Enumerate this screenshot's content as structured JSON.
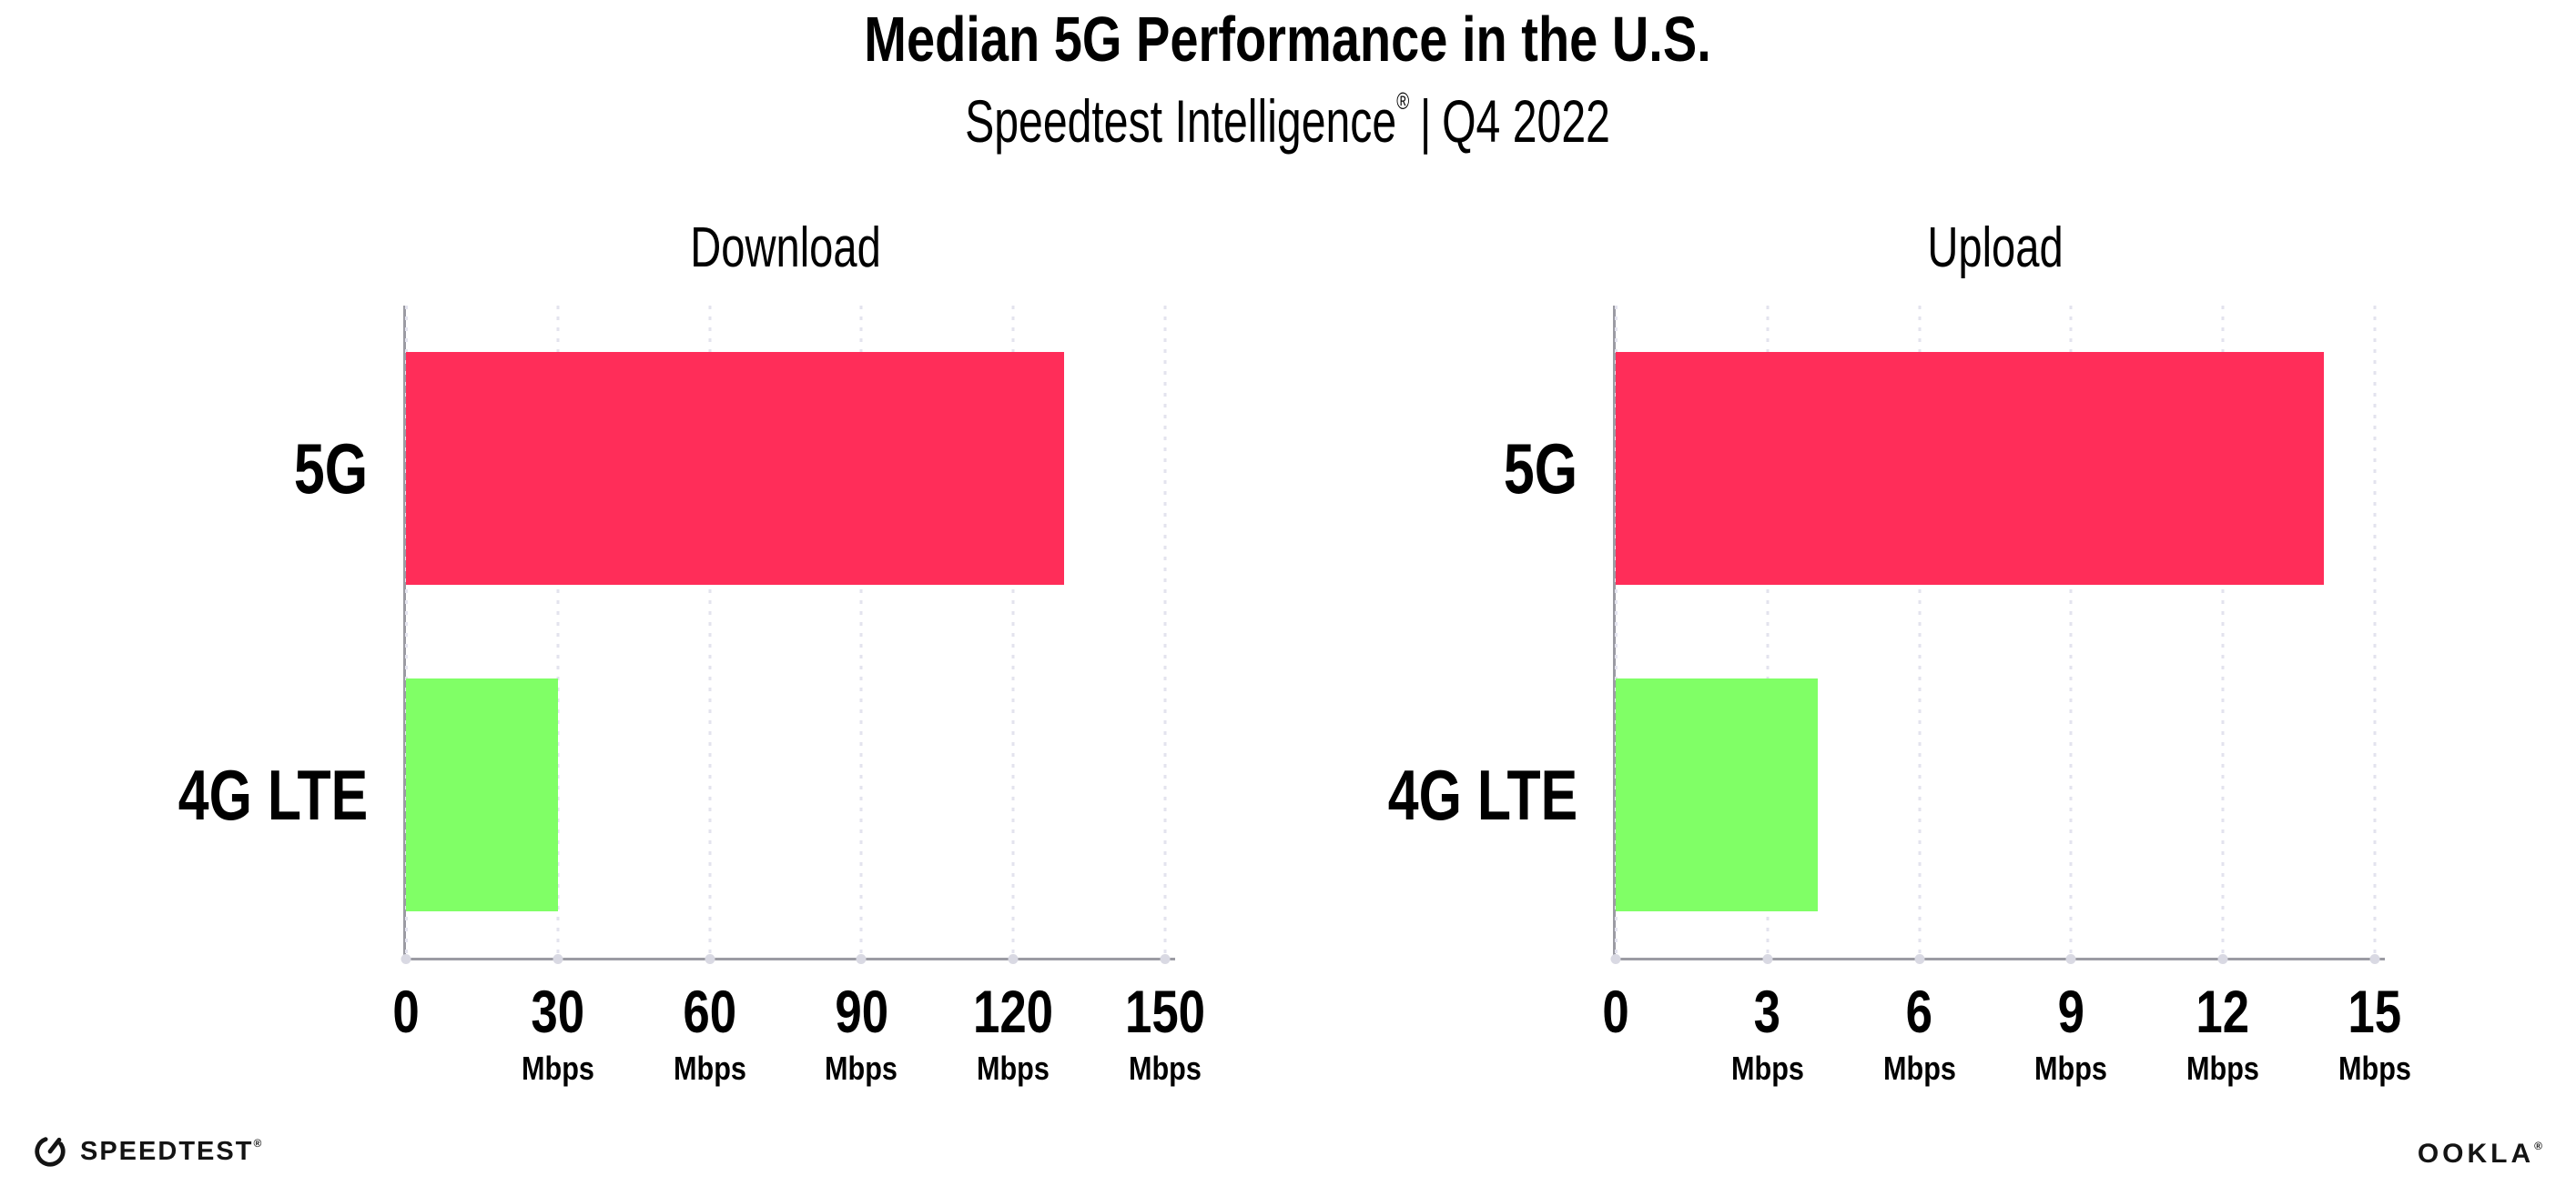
{
  "header": {
    "title": "Median 5G Performance in the U.S.",
    "subtitle_brand": "Speedtest Intelligence",
    "subtitle_reg": "®",
    "subtitle_sep": "|",
    "subtitle_period": "Q4 2022"
  },
  "chart_data": [
    {
      "type": "bar",
      "orientation": "horizontal",
      "title": "Download",
      "categories": [
        "5G",
        "4G LTE"
      ],
      "values": [
        130,
        30
      ],
      "unit": "Mbps",
      "xlabel": "",
      "ylabel": "",
      "xlim": [
        0,
        150
      ],
      "xticks": [
        0,
        30,
        60,
        90,
        120,
        150
      ],
      "bar_colors": [
        "#FF2D59",
        "#80FF66"
      ],
      "grid": "dotted vertical gridlines at each tick",
      "legend": "none"
    },
    {
      "type": "bar",
      "orientation": "horizontal",
      "title": "Upload",
      "categories": [
        "5G",
        "4G LTE"
      ],
      "values": [
        14,
        4
      ],
      "unit": "Mbps",
      "xlabel": "",
      "ylabel": "",
      "xlim": [
        0,
        15
      ],
      "xticks": [
        0,
        3,
        6,
        9,
        12,
        15
      ],
      "bar_colors": [
        "#FF2D59",
        "#80FF66"
      ],
      "grid": "dotted vertical gridlines at each tick",
      "legend": "none"
    }
  ],
  "colors": {
    "bar_5g": "#FF2D59",
    "bar_4g_lte": "#80FF66",
    "axis_line": "#9b9ba3",
    "gridline": "#e3e3ee",
    "tick_dot": "#d9d9e3",
    "text": "#000000",
    "background": "#ffffff"
  },
  "footer": {
    "speedtest_label": "SPEEDTEST",
    "speedtest_reg": "®",
    "speedtest_icon": "gauge-icon",
    "ookla_label": "OOKLA",
    "ookla_reg": "®"
  }
}
